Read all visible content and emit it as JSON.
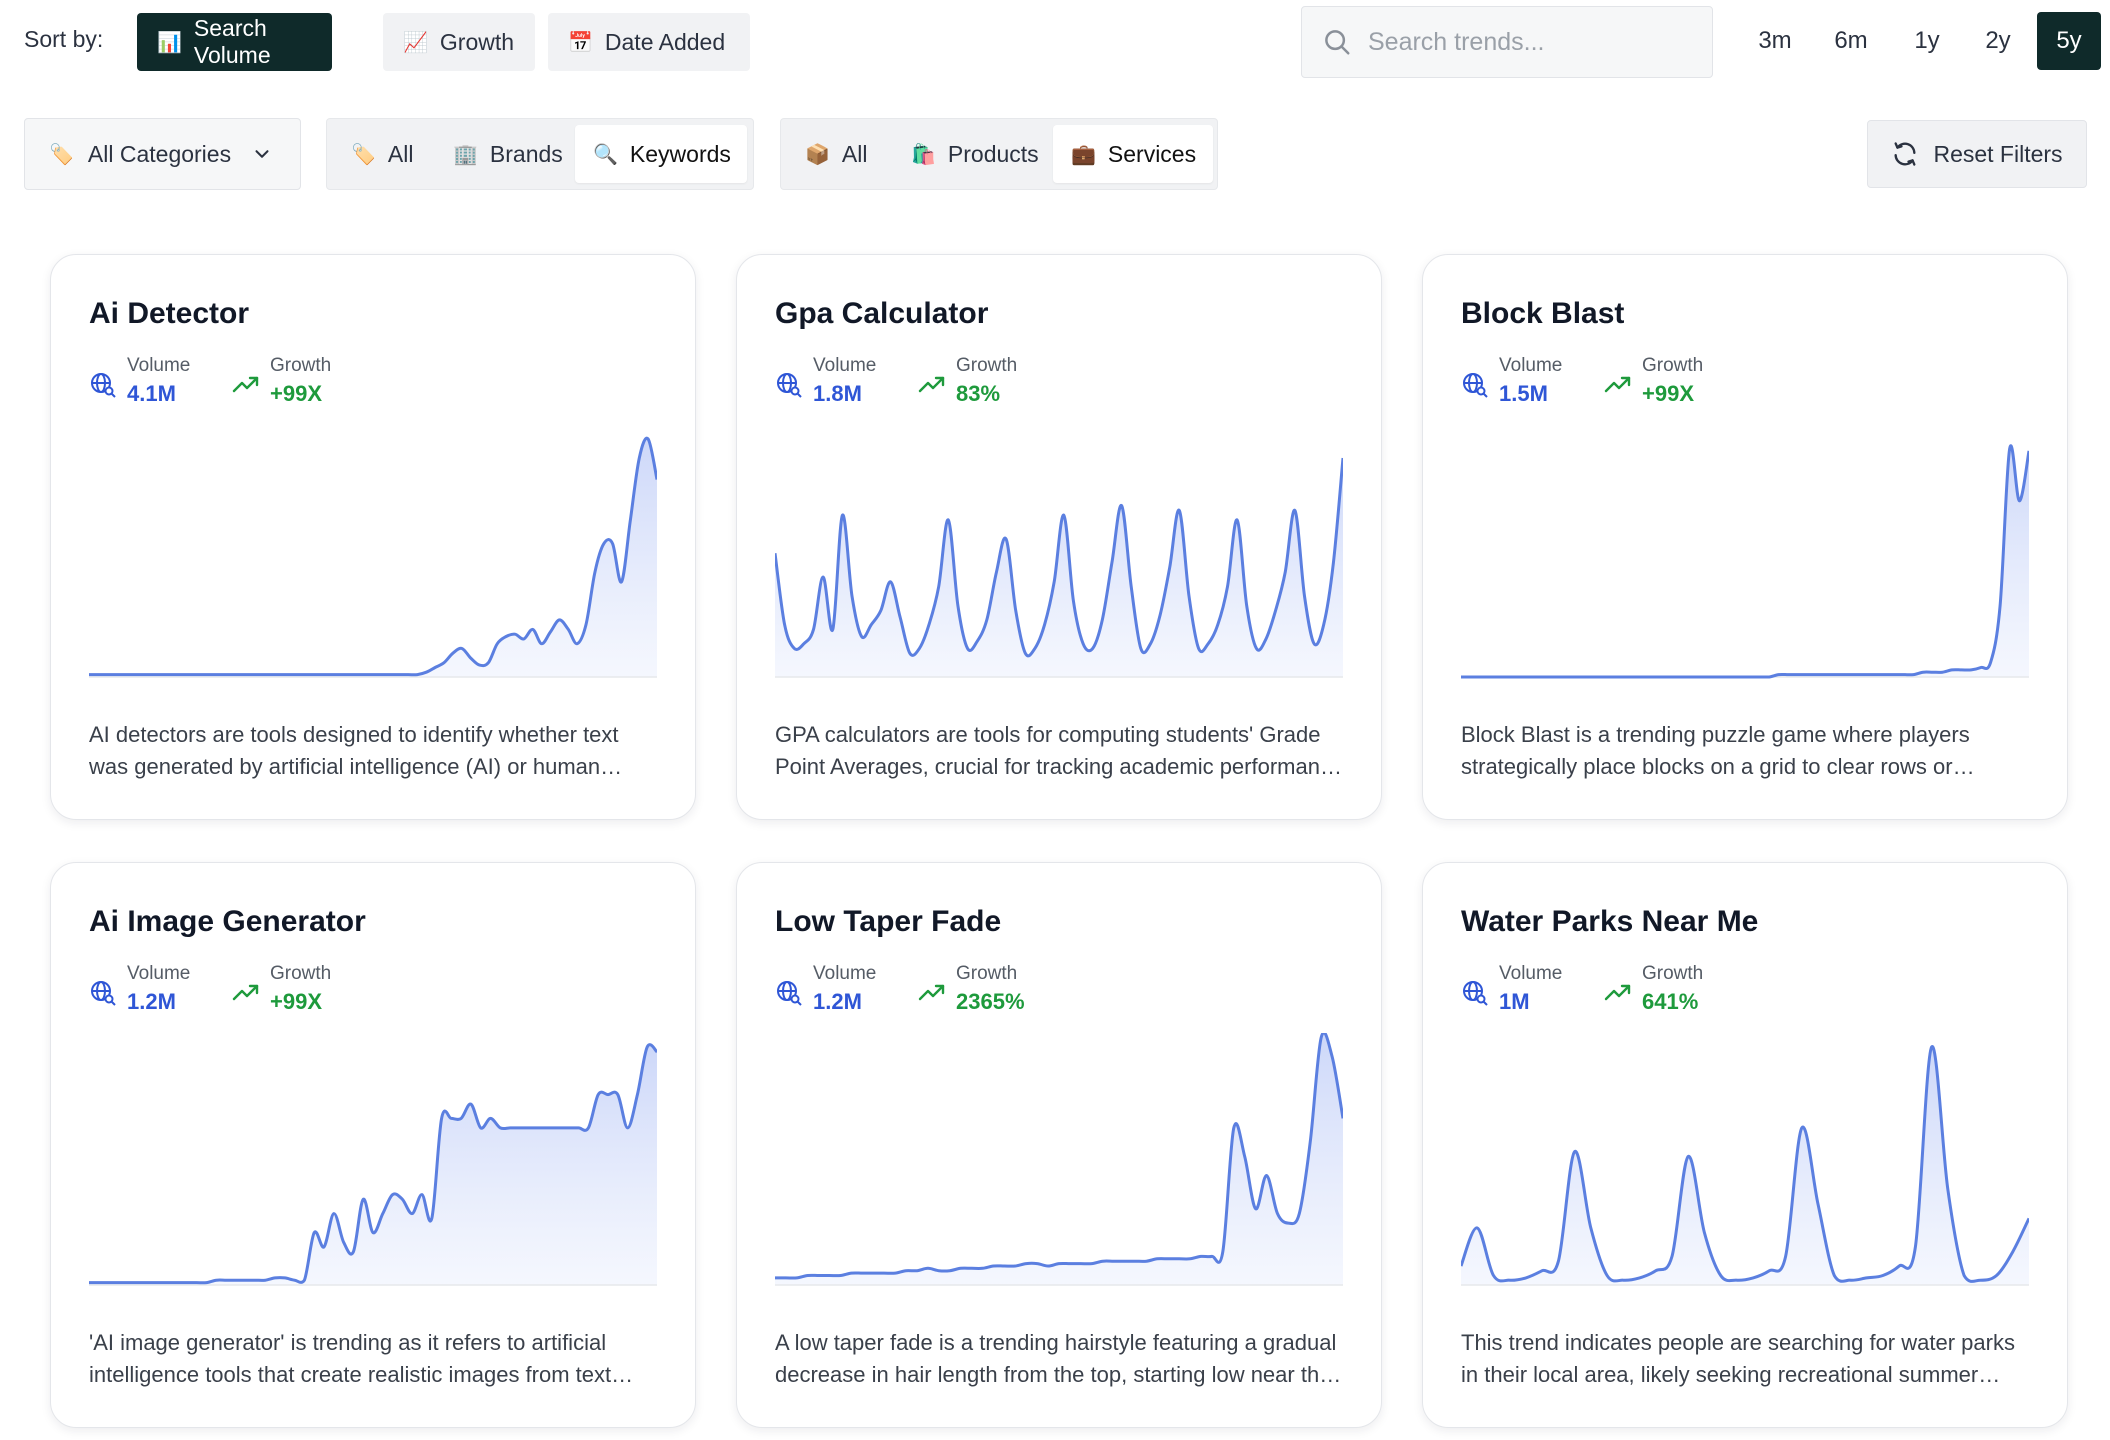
{
  "sort": {
    "label": "Sort by:",
    "options": [
      {
        "label": "Search Volume",
        "icon": "bar-chart-icon",
        "active": true
      },
      {
        "label": "Growth",
        "icon": "chart-increasing-icon",
        "active": false
      },
      {
        "label": "Date Added",
        "icon": "calendar-icon",
        "active": false
      }
    ]
  },
  "search": {
    "placeholder": "Search trends...",
    "value": ""
  },
  "ranges": [
    {
      "label": "3m",
      "active": false
    },
    {
      "label": "6m",
      "active": false
    },
    {
      "label": "1y",
      "active": false
    },
    {
      "label": "2y",
      "active": false
    },
    {
      "label": "5y",
      "active": true
    }
  ],
  "filters": {
    "category": {
      "label": "All Categories",
      "icon": "label-icon"
    },
    "type_group": [
      {
        "label": "All",
        "icon": "label-icon",
        "active": false
      },
      {
        "label": "Brands",
        "icon": "office-building-icon",
        "active": false
      },
      {
        "label": "Keywords",
        "icon": "magnifier-icon",
        "active": true
      }
    ],
    "kind_group": [
      {
        "label": "All",
        "icon": "package-icon",
        "active": false
      },
      {
        "label": "Products",
        "icon": "shopping-bags-icon",
        "active": false
      },
      {
        "label": "Services",
        "icon": "briefcase-icon",
        "active": true
      }
    ],
    "reset_label": "Reset Filters"
  },
  "metric_labels": {
    "volume": "Volume",
    "growth": "Growth"
  },
  "colors": {
    "accent_dark": "#0f2a2a",
    "volume_blue": "#2f56d6",
    "growth_green": "#1e9a3c",
    "line": "#5b7fe0"
  },
  "cards": [
    {
      "title": "Ai Detector",
      "volume": "4.1M",
      "growth": "+99X",
      "description": "AI detectors are tools designed to identify whether text was generated by artificial intelligence (AI) or human writers, useful for educators and publishers.",
      "chart_data": {
        "type": "area",
        "values": [
          1,
          1,
          1,
          1,
          1,
          1,
          1,
          1,
          1,
          1,
          1,
          1,
          1,
          1,
          1,
          1,
          1,
          1,
          1,
          1,
          1,
          1,
          1,
          1,
          1,
          1,
          1,
          1,
          1,
          1,
          1,
          1,
          1,
          1,
          1,
          1,
          1,
          1,
          2,
          4,
          6,
          10,
          12,
          8,
          5,
          6,
          14,
          17,
          18,
          16,
          20,
          14,
          19,
          24,
          20,
          14,
          22,
          44,
          56,
          56,
          40,
          66,
          92,
          100,
          83
        ]
      }
    },
    {
      "title": "Gpa Calculator",
      "volume": "1.8M",
      "growth": "83%",
      "description": "GPA calculators are tools for computing students' Grade Point Averages, crucial for tracking academic performance across semesters.",
      "chart_data": {
        "type": "area",
        "values": [
          52,
          22,
          12,
          14,
          20,
          42,
          20,
          68,
          34,
          17,
          22,
          28,
          40,
          25,
          10,
          12,
          22,
          38,
          66,
          30,
          12,
          15,
          24,
          44,
          58,
          28,
          10,
          12,
          22,
          40,
          68,
          32,
          14,
          12,
          24,
          48,
          72,
          38,
          12,
          14,
          26,
          46,
          70,
          34,
          12,
          14,
          22,
          38,
          66,
          30,
          12,
          16,
          28,
          44,
          70,
          34,
          14,
          22,
          48,
          92
        ]
      }
    },
    {
      "title": "Block Blast",
      "volume": "1.5M",
      "growth": "+99X",
      "description": "Block Blast is a trending puzzle game where players strategically place blocks on a grid to clear rows or columns and score points.",
      "chart_data": {
        "type": "area",
        "values": [
          0,
          0,
          0,
          0,
          0,
          0,
          0,
          0,
          0,
          0,
          0,
          0,
          0,
          0,
          0,
          0,
          0,
          0,
          0,
          0,
          0,
          0,
          0,
          0,
          0,
          0,
          0,
          0,
          0,
          0,
          0,
          0,
          0,
          1,
          1,
          1,
          1,
          1,
          1,
          1,
          1,
          1,
          1,
          1,
          1,
          1,
          1,
          1,
          2,
          2,
          2,
          3,
          3,
          3,
          4,
          6,
          30,
          96,
          74,
          95
        ]
      }
    },
    {
      "title": "Ai Image Generator",
      "volume": "1.2M",
      "growth": "+99X",
      "description": "'AI image generator' is trending as it refers to artificial intelligence tools that create realistic images from text prompts for designers and creators.",
      "chart_data": {
        "type": "area",
        "values": [
          1,
          1,
          1,
          1,
          1,
          1,
          1,
          1,
          1,
          1,
          1,
          1,
          1,
          2,
          2,
          2,
          2,
          2,
          2,
          3,
          3,
          2,
          2,
          22,
          16,
          30,
          18,
          14,
          36,
          22,
          30,
          38,
          36,
          30,
          38,
          28,
          70,
          70,
          70,
          76,
          66,
          70,
          66,
          66,
          66,
          66,
          66,
          66,
          66,
          66,
          66,
          66,
          80,
          80,
          80,
          66,
          80,
          100,
          98
        ]
      }
    },
    {
      "title": "Low Taper Fade",
      "volume": "1.2M",
      "growth": "2365%",
      "description": "A low taper fade is a trending hairstyle featuring a gradual decrease in hair length from the top, starting low near the ears and neckline.",
      "chart_data": {
        "type": "area",
        "values": [
          3,
          3,
          3,
          4,
          4,
          4,
          4,
          5,
          5,
          5,
          5,
          5,
          6,
          6,
          7,
          6,
          6,
          7,
          7,
          7,
          8,
          8,
          8,
          9,
          9,
          8,
          9,
          9,
          9,
          9,
          10,
          10,
          10,
          10,
          10,
          11,
          11,
          11,
          11,
          12,
          12,
          14,
          66,
          54,
          32,
          46,
          30,
          26,
          30,
          60,
          104,
          96,
          70
        ]
      }
    },
    {
      "title": "Water Parks Near Me",
      "volume": "1M",
      "growth": "641%",
      "description": "This trend indicates people are searching for water parks in their local area, likely seeking recreational summer activities for families.",
      "chart_data": {
        "type": "area",
        "values": [
          8,
          24,
          4,
          2,
          3,
          6,
          10,
          56,
          24,
          4,
          2,
          3,
          6,
          12,
          54,
          22,
          4,
          2,
          3,
          6,
          12,
          66,
          34,
          4,
          2,
          3,
          4,
          8,
          16,
          100,
          40,
          4,
          2,
          4,
          14,
          28
        ]
      }
    }
  ]
}
